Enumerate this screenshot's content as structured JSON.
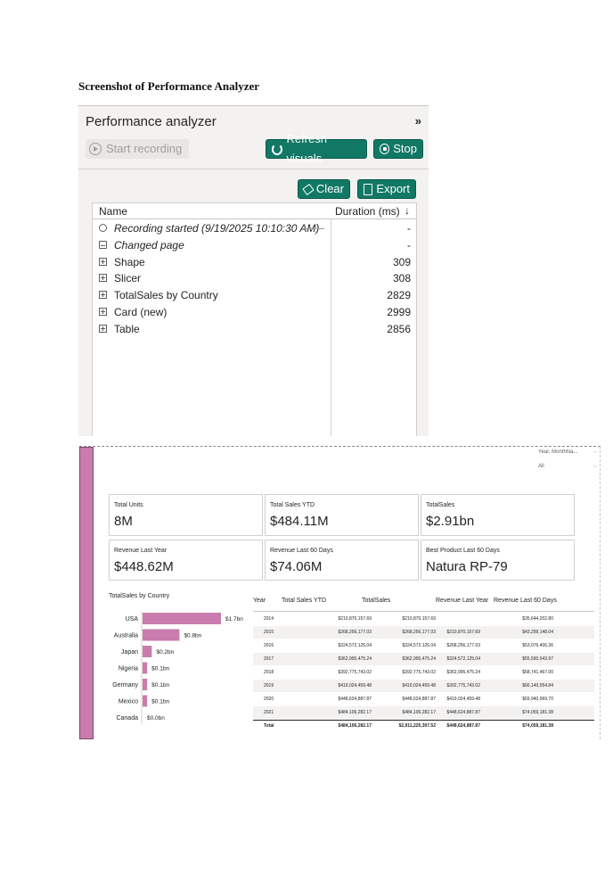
{
  "doc_heading": "Screenshot of Performance Analyzer",
  "pane": {
    "title": "Performance analyzer",
    "collapse_glyph": "»",
    "start_recording": "Start recording",
    "refresh_visuals": "Refresh visuals",
    "stop": "Stop",
    "clear": "Clear",
    "export": "Export",
    "col_name": "Name",
    "col_duration": "Duration (ms)",
    "sort_glyph": "↓",
    "rows": [
      {
        "name": "Recording started (9/19/2025 10:10:30 AM)",
        "duration": "-",
        "icon": "timer-icon"
      },
      {
        "name": "Changed page",
        "duration": "-",
        "icon": "page-icon"
      },
      {
        "name": "Shape",
        "duration": "309",
        "icon": "expand-icon"
      },
      {
        "name": "Slicer",
        "duration": "308",
        "icon": "expand-icon"
      },
      {
        "name": "TotalSales by Country",
        "duration": "2829",
        "icon": "expand-icon"
      },
      {
        "name": "Card (new)",
        "duration": "2999",
        "icon": "expand-icon"
      },
      {
        "name": "Table",
        "duration": "2856",
        "icon": "expand-icon"
      }
    ],
    "colors": {
      "accent": "#117865",
      "pane_bg": "#f3f2f1"
    }
  },
  "report": {
    "slicer": {
      "title": "Year, MonthNa...",
      "value": "All"
    },
    "cards": [
      {
        "label": "Total Units",
        "value": "8M"
      },
      {
        "label": "Total Sales YTD",
        "value": "$484.11M"
      },
      {
        "label": "TotalSales",
        "value": "$2.91bn"
      },
      {
        "label": "Revenue Last Year",
        "value": "$448.62M"
      },
      {
        "label": "Revenue Last 60 Days",
        "value": "$74.06M"
      },
      {
        "label": "Best Product Last 60 Days",
        "value": "Natura RP-79"
      }
    ],
    "table": {
      "headers": [
        "Year",
        "Total Sales YTD",
        "TotalSales",
        "Revenue Last Year",
        "Revenue Last 60 Days"
      ],
      "rows": [
        [
          "2014",
          "$210,870,157.69",
          "$210,870,157.69",
          "",
          "$35,644,202.80"
        ],
        [
          "2015",
          "$268,256,177.03",
          "$268,256,177.03",
          "$210,870,157.69",
          "$43,299,148.04"
        ],
        [
          "2016",
          "$324,572,125.04",
          "$324,572,125.04",
          "$268,256,177.03",
          "$53,076,406.36"
        ],
        [
          "2017",
          "$362,995,475.24",
          "$362,995,475.24",
          "$324,572,125.04",
          "$55,590,543.97"
        ],
        [
          "2018",
          "$392,775,743.02",
          "$392,775,743.02",
          "$362,995,475.24",
          "$58,741,467.00"
        ],
        [
          "2019",
          "$419,024,459.48",
          "$419,024,459.48",
          "$392,775,743.02",
          "$66,140,554.84"
        ],
        [
          "2020",
          "$448,624,887.87",
          "$448,624,887.87",
          "$419,024,459.48",
          "$69,940,969.70"
        ],
        [
          "2021",
          "$484,106,282.17",
          "$484,106,282.17",
          "$448,624,887.87",
          "$74,059,181.38"
        ]
      ],
      "total": [
        "Total",
        "$484,106,282.17",
        "$2,911,225,307.52",
        "$448,624,887.87",
        "$74,059,181.38"
      ]
    }
  },
  "chart_data": {
    "type": "bar",
    "orientation": "horizontal",
    "title": "TotalSales by Country",
    "categories": [
      "USA",
      "Australia",
      "Japan",
      "Nigeria",
      "Germany",
      "Mexico",
      "Canada"
    ],
    "values": [
      1.7,
      0.8,
      0.2,
      0.1,
      0.1,
      0.1,
      0.0
    ],
    "data_labels": [
      "$1.7bn",
      "$0.8bn",
      "$0.2bn",
      "$0.1bn",
      "$0.1bn",
      "$0.1bn",
      "$0.0bn"
    ],
    "bar_color": "#c97cad"
  }
}
